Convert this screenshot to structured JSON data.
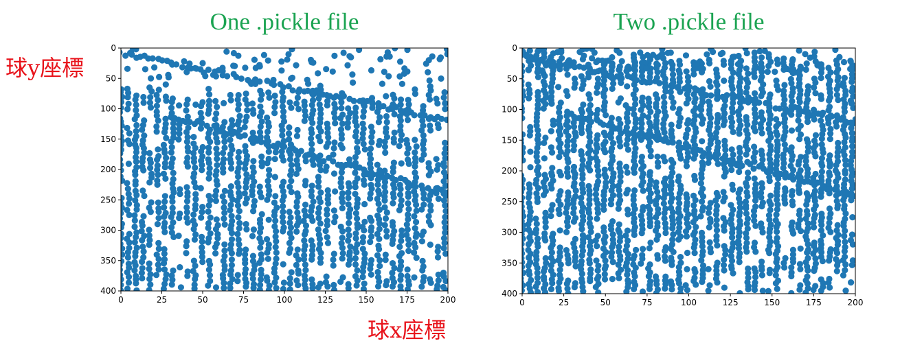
{
  "colors": {
    "title": "#1aa351",
    "annotation": "#e8131b",
    "marker": "#1f77b4",
    "axis": "#000000",
    "background": "#ffffff"
  },
  "annotations": {
    "ylabel": "球y座標",
    "xlabel": "球x座標"
  },
  "chart_data": [
    {
      "type": "scatter",
      "title": "One .pickle file",
      "xlabel": "",
      "ylabel": "",
      "xlim": [
        0,
        200
      ],
      "ylim": [
        400,
        0
      ],
      "y_inverted": true,
      "xticks": [
        "0",
        "25",
        "50",
        "75",
        "100",
        "125",
        "150",
        "175",
        "200"
      ],
      "yticks": [
        "0",
        "50",
        "100",
        "150",
        "200",
        "250",
        "300",
        "350",
        "400"
      ],
      "grid": false,
      "legend": "none",
      "marker_color": "#1f77b4",
      "description": "Dense scatter of ball positions arranged in ~45 vertical columns spanning the full y range, with two descending diagonal bands (trajectories) and an upper arc near y 0–60.",
      "series": [
        {
          "columns_x": [
            0,
            4.5,
            9,
            13.5,
            18,
            22.5,
            27,
            31.5,
            36,
            40.5,
            45,
            49.5,
            54,
            58.5,
            63,
            67.5,
            72,
            76.5,
            81,
            85.5,
            90,
            94.5,
            99,
            103.5,
            108,
            112.5,
            117,
            121.5,
            126,
            130.5,
            135,
            139.5,
            144,
            148.5,
            153,
            157.5,
            162,
            166.5,
            171,
            175.5,
            180,
            184.5,
            189,
            193.5,
            198
          ],
          "column_y_start": 60,
          "column_y_end": 400,
          "column_y_step": 7.5,
          "diagonal_bands": [
            {
              "x": [
                0,
                200
              ],
              "y": [
                8,
                118
              ]
            },
            {
              "x": [
                30,
                200
              ],
              "y": [
                112,
                240
              ]
            }
          ],
          "upper_arc": {
            "x": [
              0,
              200
            ],
            "y_min": 0,
            "y_max": 60
          }
        }
      ]
    },
    {
      "type": "scatter",
      "title": "Two .pickle file",
      "xlabel": "",
      "ylabel": "",
      "xlim": [
        0,
        200
      ],
      "ylim": [
        400,
        0
      ],
      "y_inverted": true,
      "xticks": [
        "0",
        "25",
        "50",
        "75",
        "100",
        "125",
        "150",
        "175",
        "200"
      ],
      "yticks": [
        "0",
        "50",
        "100",
        "150",
        "200",
        "250",
        "300",
        "350",
        "400"
      ],
      "grid": false,
      "legend": "none",
      "marker_color": "#1f77b4",
      "description": "Denser scatter than the first panel: same column structure with more points and the same diagonal bands.",
      "series": [
        {
          "columns_x": [
            0,
            4.5,
            9,
            13.5,
            18,
            22.5,
            27,
            31.5,
            36,
            40.5,
            45,
            49.5,
            54,
            58.5,
            63,
            67.5,
            72,
            76.5,
            81,
            85.5,
            90,
            94.5,
            99,
            103.5,
            108,
            112.5,
            117,
            121.5,
            126,
            130.5,
            135,
            139.5,
            144,
            148.5,
            153,
            157.5,
            162,
            166.5,
            171,
            175.5,
            180,
            184.5,
            189,
            193.5,
            198
          ],
          "column_y_start": 0,
          "column_y_end": 400,
          "column_y_step": 6.5,
          "diagonal_bands": [
            {
              "x": [
                0,
                200
              ],
              "y": [
                15,
                120
              ]
            },
            {
              "x": [
                30,
                200
              ],
              "y": [
                110,
                240
              ]
            }
          ],
          "upper_arc": {
            "x": [
              0,
              200
            ],
            "y_min": 0,
            "y_max": 40
          }
        }
      ]
    }
  ]
}
